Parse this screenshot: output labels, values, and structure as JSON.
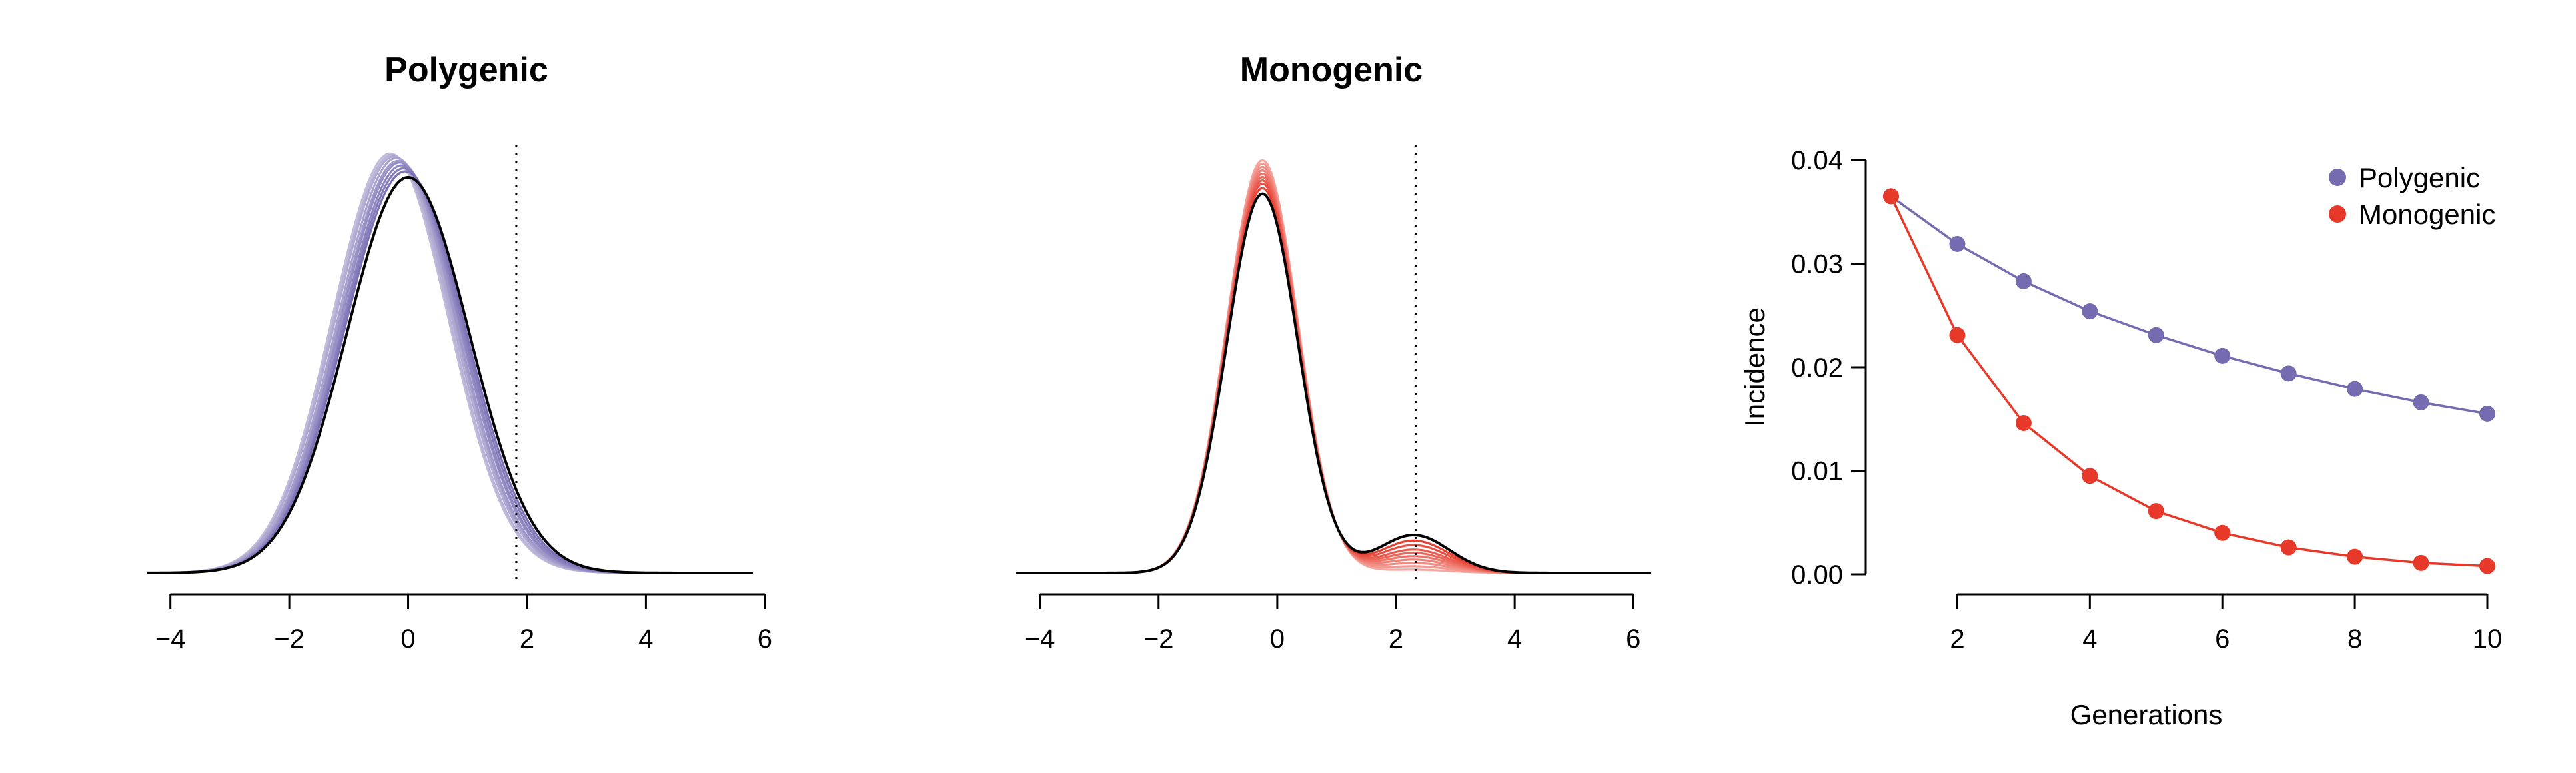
{
  "chart_data": [
    {
      "type": "line",
      "title": "Polygenic",
      "xlabel": "",
      "ylabel": "",
      "xlim": [
        -4.4,
        5.8
      ],
      "xticks": [
        -4,
        -2,
        0,
        2,
        4,
        6
      ],
      "xtick_labels": [
        "−4",
        "−2",
        "0",
        "2",
        "4",
        "6"
      ],
      "grid": false,
      "threshold": 1.82,
      "base_color": "#756BB1",
      "final_color": "#000000",
      "generations": [
        {
          "mean": -0.3,
          "sd": 0.98,
          "peak": 0.282,
          "tail_mean": 2.1,
          "tail_sd": 0.6,
          "tail_height": 0.0
        },
        {
          "mean": -0.27,
          "sd": 0.98,
          "peak": 0.281,
          "tail_mean": 2.1,
          "tail_sd": 0.6,
          "tail_height": 0.0
        },
        {
          "mean": -0.24,
          "sd": 0.99,
          "peak": 0.28,
          "tail_mean": 2.1,
          "tail_sd": 0.6,
          "tail_height": 0.0
        },
        {
          "mean": -0.2,
          "sd": 0.99,
          "peak": 0.279,
          "tail_mean": 2.1,
          "tail_sd": 0.6,
          "tail_height": 0.0
        },
        {
          "mean": -0.17,
          "sd": 0.99,
          "peak": 0.277,
          "tail_mean": 2.1,
          "tail_sd": 0.6,
          "tail_height": 0.0
        },
        {
          "mean": -0.14,
          "sd": 1.0,
          "peak": 0.276,
          "tail_mean": 2.1,
          "tail_sd": 0.6,
          "tail_height": 0.0
        },
        {
          "mean": -0.11,
          "sd": 1.0,
          "peak": 0.274,
          "tail_mean": 2.1,
          "tail_sd": 0.6,
          "tail_height": 0.0
        },
        {
          "mean": -0.08,
          "sd": 1.01,
          "peak": 0.272,
          "tail_mean": 2.1,
          "tail_sd": 0.6,
          "tail_height": 0.0
        },
        {
          "mean": -0.05,
          "sd": 1.02,
          "peak": 0.27,
          "tail_mean": 2.1,
          "tail_sd": 0.6,
          "tail_height": 0.0
        },
        {
          "mean": 0.0,
          "sd": 1.03,
          "peak": 0.266,
          "tail_mean": 2.1,
          "tail_sd": 0.6,
          "tail_height": 0.0
        }
      ]
    },
    {
      "type": "line",
      "title": "Monogenic",
      "xlabel": "",
      "ylabel": "",
      "xlim": [
        -4.4,
        6.3
      ],
      "xticks": [
        -4,
        -2,
        0,
        2,
        4,
        6
      ],
      "xtick_labels": [
        "−4",
        "−2",
        "0",
        "2",
        "4",
        "6"
      ],
      "grid": false,
      "threshold": 2.33,
      "base_color": "#E6392A",
      "final_color": "#000000",
      "generations": [
        {
          "mean": -0.25,
          "sd": 0.6,
          "peak": 0.37,
          "tail_mean": 2.3,
          "tail_sd": 0.6,
          "tail_height": 0.003
        },
        {
          "mean": -0.25,
          "sd": 0.6,
          "peak": 0.367,
          "tail_mean": 2.3,
          "tail_sd": 0.6,
          "tail_height": 0.006
        },
        {
          "mean": -0.25,
          "sd": 0.6,
          "peak": 0.364,
          "tail_mean": 2.3,
          "tail_sd": 0.6,
          "tail_height": 0.009
        },
        {
          "mean": -0.25,
          "sd": 0.6,
          "peak": 0.361,
          "tail_mean": 2.3,
          "tail_sd": 0.6,
          "tail_height": 0.012
        },
        {
          "mean": -0.25,
          "sd": 0.6,
          "peak": 0.358,
          "tail_mean": 2.3,
          "tail_sd": 0.6,
          "tail_height": 0.015
        },
        {
          "mean": -0.25,
          "sd": 0.6,
          "peak": 0.355,
          "tail_mean": 2.3,
          "tail_sd": 0.6,
          "tail_height": 0.018
        },
        {
          "mean": -0.25,
          "sd": 0.6,
          "peak": 0.352,
          "tail_mean": 2.3,
          "tail_sd": 0.6,
          "tail_height": 0.021
        },
        {
          "mean": -0.25,
          "sd": 0.6,
          "peak": 0.349,
          "tail_mean": 2.3,
          "tail_sd": 0.6,
          "tail_height": 0.025
        },
        {
          "mean": -0.25,
          "sd": 0.6,
          "peak": 0.345,
          "tail_mean": 2.3,
          "tail_sd": 0.6,
          "tail_height": 0.029
        },
        {
          "mean": -0.25,
          "sd": 0.6,
          "peak": 0.34,
          "tail_mean": 2.3,
          "tail_sd": 0.6,
          "tail_height": 0.034
        }
      ]
    },
    {
      "type": "line",
      "title": "",
      "xlabel": "Generations",
      "ylabel": "Incidence",
      "x": [
        1,
        2,
        3,
        4,
        5,
        6,
        7,
        8,
        9,
        10
      ],
      "xlim": [
        1,
        10
      ],
      "ylim": [
        0,
        0.04
      ],
      "xticks": [
        2,
        4,
        6,
        8,
        10
      ],
      "xtick_labels": [
        "2",
        "4",
        "6",
        "8",
        "10"
      ],
      "yticks": [
        0,
        0.01,
        0.02,
        0.03,
        0.04
      ],
      "ytick_labels": [
        "0.00",
        "0.01",
        "0.02",
        "0.03",
        "0.04"
      ],
      "grid": false,
      "legend_position": "top-right",
      "series": [
        {
          "name": "Polygenic",
          "color": "#756BB1",
          "values": [
            0.0365,
            0.0319,
            0.0283,
            0.0254,
            0.0231,
            0.0211,
            0.0194,
            0.0179,
            0.0166,
            0.0155
          ]
        },
        {
          "name": "Monogenic",
          "color": "#E6392A",
          "values": [
            0.0365,
            0.0231,
            0.0146,
            0.0095,
            0.0061,
            0.004,
            0.0026,
            0.0017,
            0.0011,
            0.0008
          ]
        }
      ]
    }
  ]
}
